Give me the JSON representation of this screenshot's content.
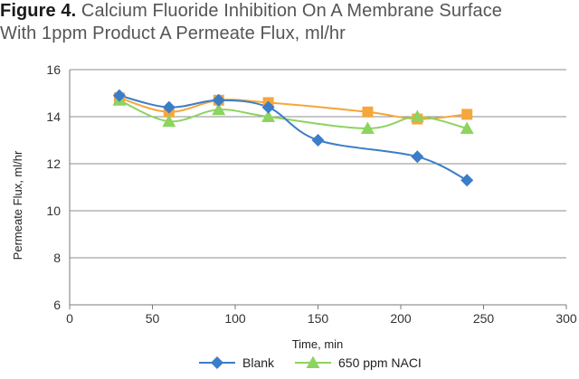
{
  "figure": {
    "label": "Figure 4.",
    "title_line1": " Calcium Fluoride Inhibition On A Membrane Surface",
    "title_line2": "With 1ppm Product A Permeate Flux, ml/hr"
  },
  "chart_data": {
    "type": "line",
    "xlabel": "Time, min",
    "ylabel": "Permeate Flux, ml/hr",
    "xlim": [
      0,
      300
    ],
    "ylim": [
      6,
      16
    ],
    "xticks": [
      0,
      50,
      100,
      150,
      200,
      250,
      300
    ],
    "yticks": [
      6,
      8,
      10,
      12,
      14,
      16
    ],
    "grid": "horizontal",
    "legend_position": "bottom",
    "series": [
      {
        "name": "Blank",
        "color": "#3b7dc8",
        "marker": "diamond",
        "x": [
          30,
          60,
          90,
          120,
          150,
          210,
          240
        ],
        "y": [
          14.9,
          14.4,
          14.7,
          14.4,
          13.0,
          12.3,
          11.3
        ],
        "in_legend": true
      },
      {
        "name": "650 ppm NACI",
        "color": "#8dd35f",
        "marker": "triangle",
        "x": [
          30,
          60,
          90,
          120,
          180,
          210,
          240
        ],
        "y": [
          14.7,
          13.8,
          14.3,
          14.0,
          13.5,
          14.0,
          13.5
        ],
        "in_legend": true
      },
      {
        "name": "series-3",
        "color": "#f5a63c",
        "marker": "square",
        "x": [
          30,
          60,
          90,
          120,
          180,
          210,
          240
        ],
        "y": [
          14.8,
          14.2,
          14.7,
          14.6,
          14.2,
          13.9,
          14.1
        ],
        "in_legend": false
      }
    ]
  }
}
